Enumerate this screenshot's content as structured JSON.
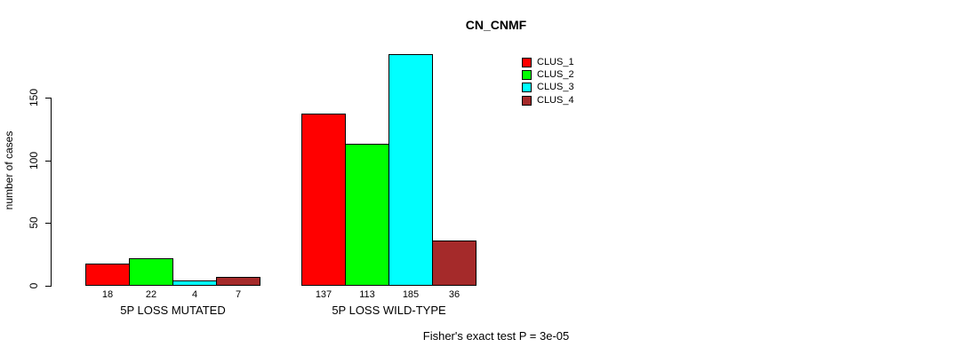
{
  "chart_data": {
    "type": "bar",
    "title": "CN_CNMF",
    "xlabel": "",
    "ylabel": "number of cases",
    "ylim": [
      0,
      150
    ],
    "yticks": [
      0,
      50,
      100,
      150
    ],
    "grid": false,
    "legend_position": "top-right",
    "show_bar_values": true,
    "categories": [
      "5P LOSS MUTATED",
      "5P LOSS WILD-TYPE"
    ],
    "series": [
      {
        "name": "CLUS_1",
        "color": "#ff0000",
        "values": [
          18,
          137
        ]
      },
      {
        "name": "CLUS_2",
        "color": "#00ff00",
        "values": [
          22,
          113
        ]
      },
      {
        "name": "CLUS_3",
        "color": "#00ffff",
        "values": [
          4,
          185
        ]
      },
      {
        "name": "CLUS_4",
        "color": "#a52a2a",
        "values": [
          7,
          36
        ]
      }
    ],
    "annotation": "Fisher's exact test P = 3e-05",
    "colors": {
      "bar_border": "#000000",
      "axis": "#000000",
      "background": "#ffffff"
    }
  }
}
